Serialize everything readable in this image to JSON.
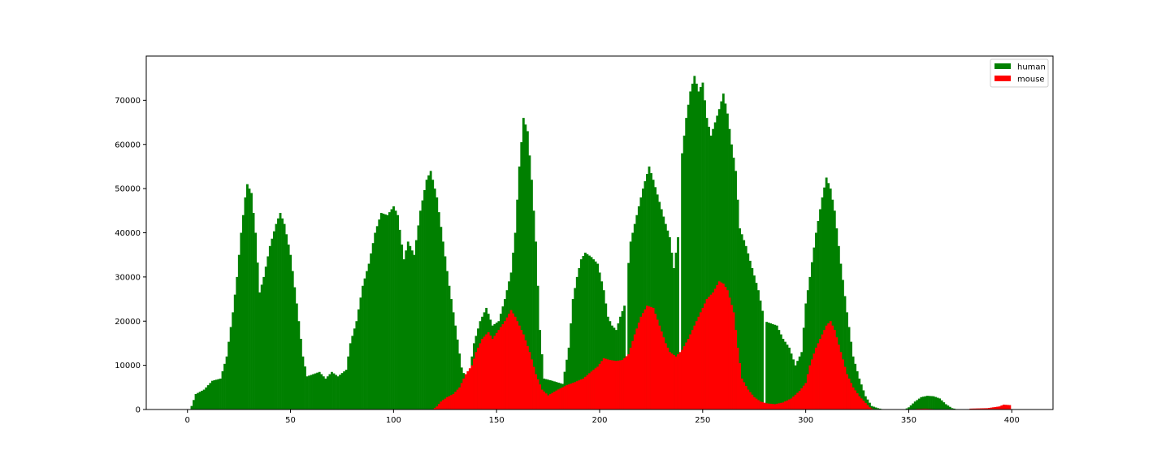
{
  "chart_data": {
    "type": "bar",
    "title": "",
    "xlabel": "",
    "ylabel": "",
    "xlim": [
      -20,
      420
    ],
    "ylim": [
      0,
      80000
    ],
    "grid": false,
    "legend_position": "top-right",
    "x_ticks": [
      0,
      50,
      100,
      150,
      200,
      250,
      300,
      350,
      400
    ],
    "x_tick_labels": [
      "0",
      "50",
      "100",
      "150",
      "200",
      "250",
      "300",
      "350",
      "400"
    ],
    "y_ticks": [
      0,
      10000,
      20000,
      30000,
      40000,
      50000,
      60000,
      70000
    ],
    "y_tick_labels": [
      "0",
      "10000",
      "20000",
      "30000",
      "40000",
      "50000",
      "60000",
      "70000"
    ],
    "series": [
      {
        "name": "human",
        "color": "#008000",
        "keypoints": [
          [
            1,
            0
          ],
          [
            2,
            800
          ],
          [
            4,
            3500
          ],
          [
            8,
            4500
          ],
          [
            12,
            6500
          ],
          [
            16,
            7000
          ],
          [
            19,
            12000
          ],
          [
            22,
            22000
          ],
          [
            24,
            30000
          ],
          [
            26,
            40000
          ],
          [
            28,
            48000
          ],
          [
            29,
            51000
          ],
          [
            31,
            49000
          ],
          [
            33,
            40000
          ],
          [
            35,
            26500
          ],
          [
            37,
            30000
          ],
          [
            40,
            37000
          ],
          [
            43,
            42000
          ],
          [
            45,
            44500
          ],
          [
            47,
            42000
          ],
          [
            50,
            35000
          ],
          [
            53,
            24000
          ],
          [
            56,
            12000
          ],
          [
            58,
            7500
          ],
          [
            61,
            8000
          ],
          [
            64,
            8500
          ],
          [
            67,
            7000
          ],
          [
            70,
            8500
          ],
          [
            73,
            7500
          ],
          [
            77,
            9000
          ],
          [
            79,
            15000
          ],
          [
            82,
            20000
          ],
          [
            85,
            28000
          ],
          [
            88,
            33000
          ],
          [
            91,
            40000
          ],
          [
            94,
            44500
          ],
          [
            97,
            44000
          ],
          [
            100,
            46000
          ],
          [
            102,
            44000
          ],
          [
            105,
            34000
          ],
          [
            107,
            38000
          ],
          [
            110,
            35000
          ],
          [
            113,
            45000
          ],
          [
            116,
            52000
          ],
          [
            118,
            54000
          ],
          [
            121,
            48000
          ],
          [
            124,
            38000
          ],
          [
            127,
            28000
          ],
          [
            130,
            19000
          ],
          [
            133,
            9500
          ],
          [
            135,
            7000
          ],
          [
            137,
            9000
          ],
          [
            139,
            15000
          ],
          [
            142,
            20000
          ],
          [
            145,
            23000
          ],
          [
            148,
            19000
          ],
          [
            151,
            20000
          ],
          [
            154,
            25000
          ],
          [
            157,
            31000
          ],
          [
            159,
            40000
          ],
          [
            161,
            55000
          ],
          [
            163,
            66000
          ],
          [
            165,
            63000
          ],
          [
            167,
            52000
          ],
          [
            169,
            38000
          ],
          [
            171,
            18000
          ],
          [
            173,
            7000
          ],
          [
            177,
            6500
          ],
          [
            182,
            5800
          ],
          [
            185,
            14000
          ],
          [
            187,
            25000
          ],
          [
            189,
            30000
          ],
          [
            191,
            34000
          ],
          [
            193,
            35500
          ],
          [
            196,
            34500
          ],
          [
            199,
            33000
          ],
          [
            202,
            27000
          ],
          [
            204,
            21000
          ],
          [
            206,
            19000
          ],
          [
            208,
            18000
          ],
          [
            210,
            21000
          ],
          [
            212,
            23500
          ],
          [
            215,
            38000
          ],
          [
            218,
            44000
          ],
          [
            221,
            50000
          ],
          [
            224,
            55000
          ],
          [
            226,
            52000
          ],
          [
            229,
            47000
          ],
          [
            232,
            42000
          ],
          [
            234,
            39000
          ],
          [
            236,
            32000
          ],
          [
            238,
            39000
          ],
          [
            240,
            58000
          ],
          [
            242,
            66000
          ],
          [
            244,
            72000
          ],
          [
            246,
            75500
          ],
          [
            248,
            72000
          ],
          [
            250,
            74000
          ],
          [
            252,
            66000
          ],
          [
            254,
            62000
          ],
          [
            256,
            65000
          ],
          [
            258,
            68000
          ],
          [
            260,
            71500
          ],
          [
            262,
            67000
          ],
          [
            264,
            60000
          ],
          [
            266,
            54000
          ],
          [
            268,
            41000
          ],
          [
            271,
            37000
          ],
          [
            274,
            32000
          ],
          [
            277,
            27000
          ],
          [
            280,
            20000
          ],
          [
            283,
            19500
          ],
          [
            286,
            19000
          ],
          [
            289,
            16000
          ],
          [
            292,
            14000
          ],
          [
            295,
            10000
          ],
          [
            298,
            13000
          ],
          [
            300,
            24000
          ],
          [
            302,
            30000
          ],
          [
            305,
            40000
          ],
          [
            308,
            48000
          ],
          [
            310,
            52500
          ],
          [
            312,
            50000
          ],
          [
            314,
            45000
          ],
          [
            317,
            33000
          ],
          [
            320,
            22000
          ],
          [
            323,
            12000
          ],
          [
            326,
            7000
          ],
          [
            329,
            3000
          ],
          [
            332,
            800
          ],
          [
            335,
            300
          ],
          [
            338,
            0
          ],
          [
            348,
            0
          ],
          [
            350,
            500
          ],
          [
            353,
            1800
          ],
          [
            356,
            2800
          ],
          [
            359,
            3100
          ],
          [
            362,
            3000
          ],
          [
            365,
            2500
          ],
          [
            368,
            1200
          ],
          [
            371,
            300
          ],
          [
            374,
            0
          ],
          [
            400,
            0
          ]
        ],
        "gaps": [
          213,
          239,
          280
        ]
      },
      {
        "name": "mouse",
        "color": "#ff0000",
        "keypoints": [
          [
            119,
            0
          ],
          [
            121,
            700
          ],
          [
            123,
            1800
          ],
          [
            126,
            2800
          ],
          [
            129,
            3500
          ],
          [
            132,
            5000
          ],
          [
            135,
            8000
          ],
          [
            138,
            10000
          ],
          [
            140,
            13000
          ],
          [
            143,
            16000
          ],
          [
            146,
            17500
          ],
          [
            148,
            16000
          ],
          [
            151,
            18000
          ],
          [
            154,
            20000
          ],
          [
            157,
            22500
          ],
          [
            159,
            21000
          ],
          [
            161,
            19000
          ],
          [
            163,
            17000
          ],
          [
            166,
            13000
          ],
          [
            169,
            8000
          ],
          [
            172,
            4500
          ],
          [
            175,
            3200
          ],
          [
            179,
            4300
          ],
          [
            184,
            5500
          ],
          [
            188,
            6200
          ],
          [
            192,
            7000
          ],
          [
            196,
            8600
          ],
          [
            199,
            9700
          ],
          [
            202,
            11600
          ],
          [
            205,
            11200
          ],
          [
            208,
            11000
          ],
          [
            211,
            11200
          ],
          [
            214,
            12500
          ],
          [
            217,
            17000
          ],
          [
            220,
            21000
          ],
          [
            223,
            23500
          ],
          [
            226,
            23000
          ],
          [
            229,
            19000
          ],
          [
            232,
            15000
          ],
          [
            234,
            13000
          ],
          [
            237,
            12000
          ],
          [
            240,
            13500
          ],
          [
            243,
            16000
          ],
          [
            246,
            19000
          ],
          [
            249,
            22000
          ],
          [
            252,
            25000
          ],
          [
            255,
            26500
          ],
          [
            258,
            29000
          ],
          [
            260,
            28500
          ],
          [
            262,
            27000
          ],
          [
            265,
            22000
          ],
          [
            267,
            14000
          ],
          [
            269,
            7000
          ],
          [
            272,
            4500
          ],
          [
            275,
            2800
          ],
          [
            278,
            1800
          ],
          [
            281,
            1400
          ],
          [
            285,
            1200
          ],
          [
            289,
            1600
          ],
          [
            293,
            2500
          ],
          [
            297,
            4200
          ],
          [
            300,
            6000
          ],
          [
            302,
            10000
          ],
          [
            305,
            14000
          ],
          [
            307,
            16000
          ],
          [
            310,
            19000
          ],
          [
            312,
            20000
          ],
          [
            314,
            18000
          ],
          [
            317,
            13000
          ],
          [
            320,
            8000
          ],
          [
            323,
            5000
          ],
          [
            326,
            3000
          ],
          [
            329,
            1500
          ],
          [
            331,
            500
          ],
          [
            333,
            0
          ],
          [
            352,
            0
          ],
          [
            354,
            150
          ],
          [
            358,
            200
          ],
          [
            362,
            100
          ],
          [
            366,
            0
          ],
          [
            378,
            0
          ],
          [
            380,
            200
          ],
          [
            384,
            250
          ],
          [
            388,
            300
          ],
          [
            391,
            500
          ],
          [
            394,
            700
          ],
          [
            396,
            1100
          ],
          [
            399,
            1000
          ],
          [
            400,
            0
          ]
        ],
        "gaps": []
      }
    ]
  }
}
